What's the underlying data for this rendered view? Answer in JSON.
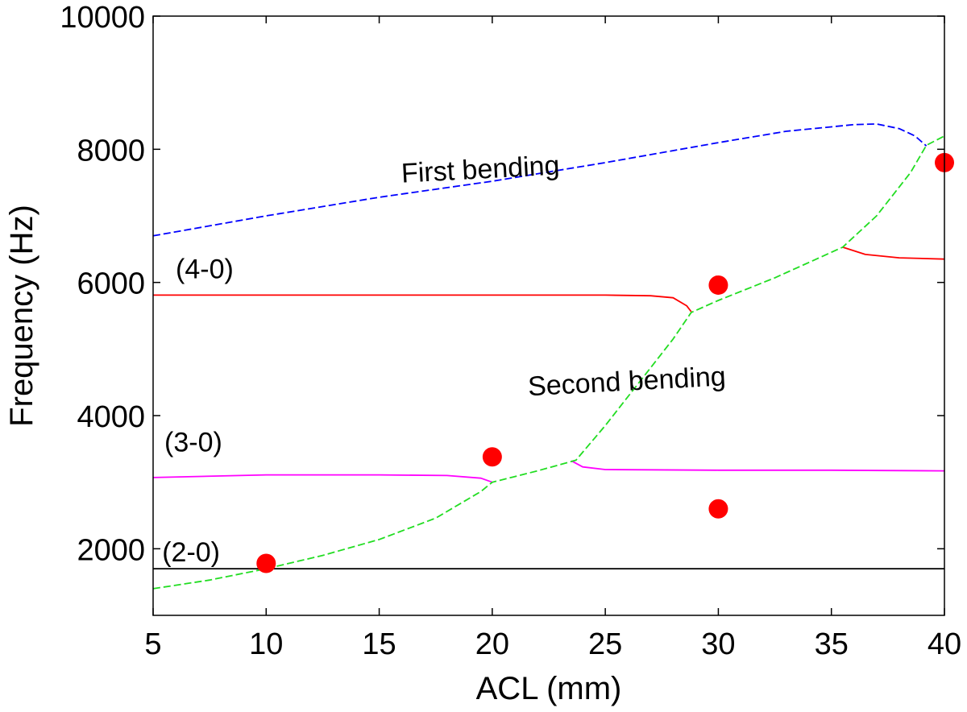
{
  "chart_data": {
    "type": "line",
    "xlabel": "ACL (mm)",
    "ylabel": "Frequency (Hz)",
    "xlim": [
      5,
      40
    ],
    "ylim": [
      1000,
      10000
    ],
    "xticks": [
      5,
      10,
      15,
      20,
      25,
      30,
      35,
      40
    ],
    "yticks": [
      2000,
      4000,
      6000,
      8000,
      10000
    ],
    "grid": false,
    "legend": "none",
    "series": [
      {
        "color": "#0000ff",
        "dash": "dashed",
        "points": [
          [
            5,
            6700
          ],
          [
            10,
            7000
          ],
          [
            15,
            7280
          ],
          [
            20,
            7520
          ],
          [
            25,
            7800
          ],
          [
            30,
            8100
          ],
          [
            33,
            8270
          ],
          [
            36,
            8370
          ],
          [
            37,
            8380
          ],
          [
            38,
            8310
          ],
          [
            38.7,
            8200
          ],
          [
            39.2,
            8050
          ]
        ]
      },
      {
        "color": "#ff0000",
        "dash": "solid",
        "points": [
          [
            5,
            5810
          ],
          [
            10,
            5810
          ],
          [
            15,
            5810
          ],
          [
            20,
            5810
          ],
          [
            25,
            5810
          ],
          [
            27,
            5800
          ],
          [
            28,
            5770
          ],
          [
            28.6,
            5650
          ],
          [
            28.8,
            5560
          ]
        ]
      },
      {
        "color": "#ff0000",
        "dash": "solid",
        "points": [
          [
            35.5,
            6530
          ],
          [
            36.5,
            6420
          ],
          [
            38,
            6370
          ],
          [
            40,
            6350
          ]
        ]
      },
      {
        "color": "#ff00ff",
        "dash": "solid",
        "points": [
          [
            5,
            3070
          ],
          [
            10,
            3110
          ],
          [
            15,
            3110
          ],
          [
            18,
            3100
          ],
          [
            19.5,
            3060
          ],
          [
            20,
            3000
          ]
        ]
      },
      {
        "color": "#ff00ff",
        "dash": "solid",
        "points": [
          [
            23.5,
            3320
          ],
          [
            24,
            3230
          ],
          [
            25,
            3190
          ],
          [
            30,
            3180
          ],
          [
            35,
            3180
          ],
          [
            40,
            3170
          ]
        ]
      },
      {
        "color": "#000000",
        "dash": "solid",
        "points": [
          [
            5,
            1700
          ],
          [
            40,
            1700
          ]
        ]
      },
      {
        "color": "#22dd22",
        "dash": "dashed",
        "points": [
          [
            5,
            1400
          ],
          [
            7.5,
            1530
          ],
          [
            10,
            1700
          ],
          [
            12.5,
            1900
          ],
          [
            15,
            2140
          ],
          [
            17.5,
            2460
          ],
          [
            19.5,
            2860
          ],
          [
            20,
            3000
          ],
          [
            22,
            3170
          ],
          [
            23.7,
            3330
          ],
          [
            25,
            3850
          ],
          [
            26.5,
            4500
          ],
          [
            28,
            5150
          ],
          [
            28.8,
            5550
          ],
          [
            30,
            5730
          ],
          [
            32.5,
            6070
          ],
          [
            35.5,
            6530
          ],
          [
            37,
            7000
          ],
          [
            38.5,
            7650
          ],
          [
            39.2,
            8060
          ],
          [
            40,
            8200
          ]
        ]
      }
    ],
    "markers": {
      "color": "#ff0000",
      "points": [
        [
          10,
          1780
        ],
        [
          20,
          3380
        ],
        [
          30,
          5960
        ],
        [
          30,
          2600
        ],
        [
          40,
          7800
        ]
      ]
    },
    "annotations": [
      {
        "text": "First bending",
        "x": 16,
        "y": 7500,
        "rotate": -3
      },
      {
        "text": "(4-0)",
        "x": 6.0,
        "y": 6060,
        "rotate": 0
      },
      {
        "text": "Second bending",
        "x": 21.6,
        "y": 4300,
        "rotate": -3
      },
      {
        "text": "(3-0)",
        "x": 5.5,
        "y": 3460,
        "rotate": 0
      },
      {
        "text": "(2-0)",
        "x": 5.4,
        "y": 1810,
        "rotate": 0
      }
    ]
  }
}
